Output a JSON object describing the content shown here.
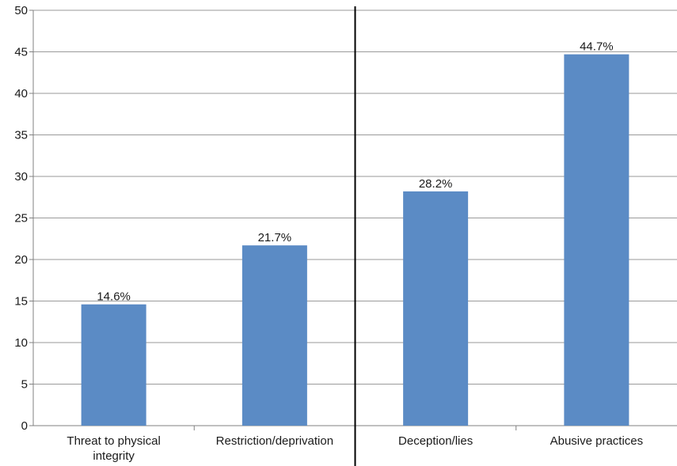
{
  "chart_data": {
    "type": "bar",
    "title": "",
    "xlabel": "",
    "ylabel": "",
    "ylim": [
      0,
      50
    ],
    "yticks": [
      0,
      5,
      10,
      15,
      20,
      25,
      30,
      35,
      40,
      45,
      50
    ],
    "grid": true,
    "categories": [
      [
        "Threat to physical",
        "integrity"
      ],
      [
        "Restriction/deprivation"
      ],
      [
        "Deception/lies"
      ],
      [
        "Abusive practices"
      ]
    ],
    "values": [
      14.6,
      21.7,
      28.2,
      44.7
    ],
    "data_labels": [
      "14.6%",
      "21.7%",
      "28.2%",
      "44.7%"
    ],
    "separator_after_index": 1,
    "colors": {
      "bar": "#5B8BC5",
      "grid": "#9a9a9a",
      "axis": "#808080",
      "separator": "#000000"
    }
  }
}
